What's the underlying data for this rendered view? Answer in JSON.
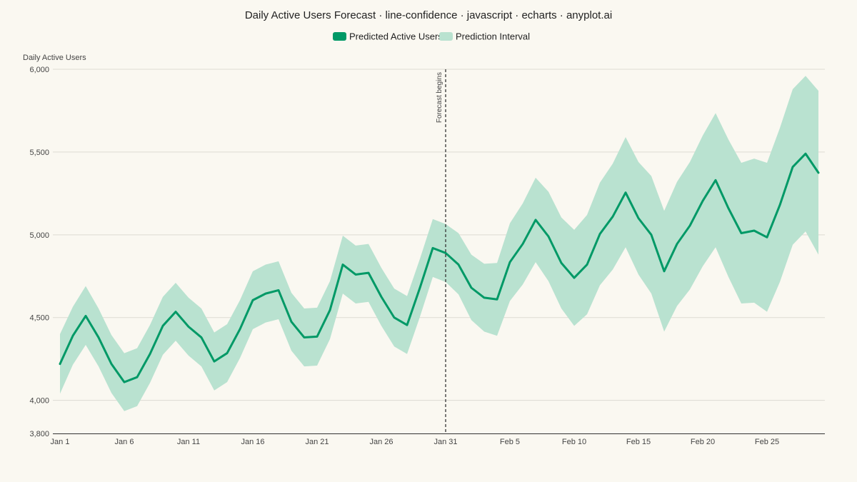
{
  "chart_data": {
    "type": "line",
    "title": "Daily Active Users Forecast · line-confidence · javascript · echarts · anyplot.ai",
    "ylabel": "Daily Active Users",
    "xlabel": "",
    "ylim": [
      3800,
      6000
    ],
    "yticks": [
      "6,000",
      "5,500",
      "5,000",
      "4,500",
      "4,000",
      "3,800"
    ],
    "ytick_values": [
      6000,
      5500,
      5000,
      4500,
      4000,
      3800
    ],
    "xtick_labels": [
      "Jan 1",
      "Jan 6",
      "Jan 11",
      "Jan 16",
      "Jan 21",
      "Jan 26",
      "Jan 31",
      "Feb 5",
      "Feb 10",
      "Feb 15",
      "Feb 20",
      "Feb 25"
    ],
    "xtick_index": [
      0,
      5,
      10,
      15,
      20,
      25,
      30,
      35,
      40,
      45,
      50,
      55
    ],
    "legend_position": "top-center",
    "grid": true,
    "colors": {
      "line": "#009966",
      "band": "#B9E2D0",
      "forecast_marker": "#333333"
    },
    "legend": [
      {
        "label": "Predicted Active Users",
        "swatch": "line"
      },
      {
        "label": "Prediction Interval",
        "swatch": "band"
      }
    ],
    "annotation": {
      "label": "Forecast begins",
      "index": 30
    },
    "series": [
      {
        "name": "Predicted Active Users",
        "values": [
          4220,
          4390,
          4510,
          4380,
          4220,
          4110,
          4140,
          4280,
          4450,
          4535,
          4445,
          4380,
          4235,
          4285,
          4430,
          4605,
          4645,
          4665,
          4475,
          4380,
          4385,
          4545,
          4820,
          4760,
          4770,
          4625,
          4500,
          4455,
          4680,
          4920,
          4890,
          4820,
          4680,
          4620,
          4610,
          4835,
          4945,
          5090,
          4990,
          4830,
          4740,
          4820,
          5005,
          5110,
          5255,
          5100,
          5000,
          4780,
          4945,
          5055,
          5205,
          5330,
          5160,
          5010,
          5025,
          4985,
          5180,
          5410,
          5490,
          5375
        ]
      },
      {
        "name": "Prediction Interval",
        "lower": [
          4040,
          4215,
          4335,
          4205,
          4045,
          3935,
          3965,
          4105,
          4275,
          4360,
          4270,
          4205,
          4060,
          4110,
          4255,
          4430,
          4470,
          4490,
          4300,
          4205,
          4210,
          4370,
          4645,
          4585,
          4595,
          4450,
          4325,
          4280,
          4505,
          4745,
          4715,
          4640,
          4485,
          4415,
          4390,
          4600,
          4700,
          4835,
          4720,
          4555,
          4450,
          4520,
          4695,
          4790,
          4925,
          4760,
          4645,
          4415,
          4570,
          4670,
          4810,
          4925,
          4745,
          4585,
          4590,
          4535,
          4715,
          4940,
          5020,
          4880
        ],
        "upper": [
          4400,
          4565,
          4690,
          4555,
          4395,
          4285,
          4315,
          4455,
          4625,
          4710,
          4620,
          4555,
          4410,
          4460,
          4605,
          4780,
          4820,
          4840,
          4650,
          4555,
          4560,
          4720,
          4995,
          4935,
          4945,
          4800,
          4675,
          4630,
          4855,
          5095,
          5065,
          5010,
          4880,
          4825,
          4830,
          5070,
          5190,
          5345,
          5260,
          5105,
          5030,
          5120,
          5315,
          5430,
          5590,
          5440,
          5355,
          5145,
          5320,
          5440,
          5600,
          5735,
          5575,
          5435,
          5460,
          5435,
          5645,
          5880,
          5960,
          5870
        ]
      }
    ]
  }
}
